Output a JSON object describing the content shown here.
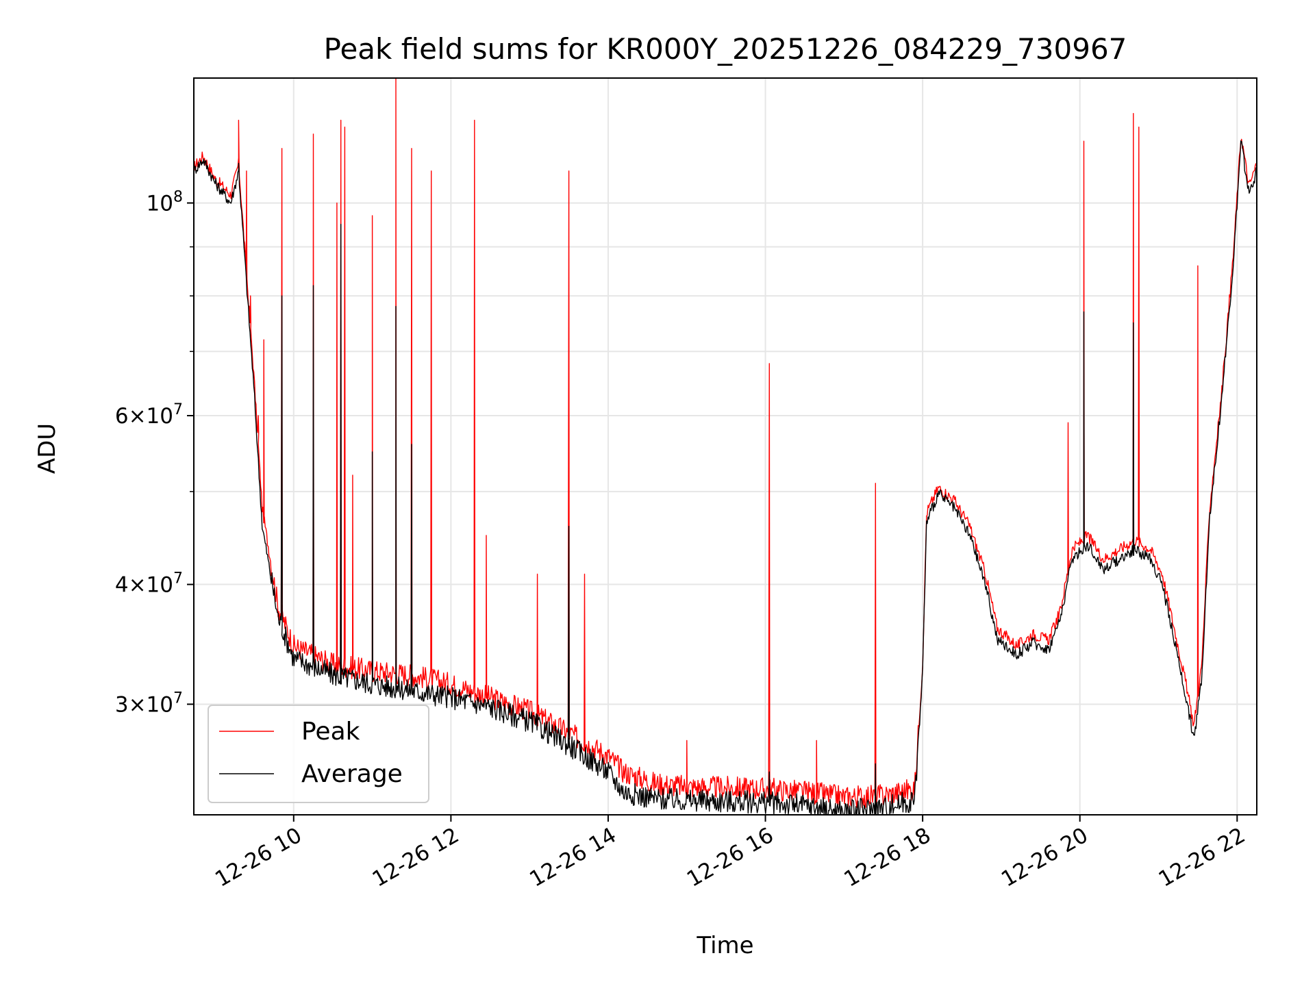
{
  "chart_data": {
    "type": "line",
    "title": "Peak field sums for KR000Y_20251226_084229_730967",
    "xlabel": "Time",
    "ylabel": "ADU",
    "yscale": "log",
    "ylim": [
      23000000,
      135000000
    ],
    "xlim_hours": [
      8.73,
      22.25
    ],
    "grid": true,
    "legend_position": "lower-left",
    "x_ticks": [
      {
        "hour": 10,
        "label": "12-26 10"
      },
      {
        "hour": 12,
        "label": "12-26 12"
      },
      {
        "hour": 14,
        "label": "12-26 14"
      },
      {
        "hour": 16,
        "label": "12-26 16"
      },
      {
        "hour": 18,
        "label": "12-26 18"
      },
      {
        "hour": 20,
        "label": "12-26 20"
      },
      {
        "hour": 22,
        "label": "12-26 22"
      }
    ],
    "y_ticks": [
      {
        "value": 30000000,
        "mantissa": "3",
        "exponent": "7"
      },
      {
        "value": 40000000,
        "mantissa": "4",
        "exponent": "7"
      },
      {
        "value": 60000000,
        "mantissa": "6",
        "exponent": "7"
      },
      {
        "value": 100000000,
        "mantissa": "10",
        "exponent": "8",
        "pure_power": true
      }
    ],
    "y_minor_ticks": [
      50000000,
      70000000,
      80000000,
      90000000
    ],
    "tick_times_sign": "×",
    "series": [
      {
        "name": "Peak",
        "color": "#ff0000",
        "baseline": [
          [
            8.73,
            109000000
          ],
          [
            8.85,
            112000000
          ],
          [
            9.0,
            106000000
          ],
          [
            9.2,
            102000000
          ],
          [
            9.3,
            110000000
          ],
          [
            9.5,
            65000000
          ],
          [
            9.6,
            48000000
          ],
          [
            9.8,
            38000000
          ],
          [
            10.0,
            34500000
          ],
          [
            10.5,
            33000000
          ],
          [
            11.0,
            32500000
          ],
          [
            11.5,
            32200000
          ],
          [
            12.0,
            31500000
          ],
          [
            12.5,
            30500000
          ],
          [
            13.0,
            29500000
          ],
          [
            13.5,
            28000000
          ],
          [
            14.0,
            26500000
          ],
          [
            14.2,
            25500000
          ],
          [
            14.6,
            24800000
          ],
          [
            15.0,
            24600000
          ],
          [
            16.0,
            24500000
          ],
          [
            16.5,
            24300000
          ],
          [
            17.0,
            24000000
          ],
          [
            17.5,
            24100000
          ],
          [
            17.9,
            24500000
          ],
          [
            18.0,
            33000000
          ],
          [
            18.05,
            47500000
          ],
          [
            18.2,
            50500000
          ],
          [
            18.4,
            49000000
          ],
          [
            18.6,
            46000000
          ],
          [
            18.8,
            41000000
          ],
          [
            18.95,
            36000000
          ],
          [
            19.2,
            34500000
          ],
          [
            19.4,
            35500000
          ],
          [
            19.6,
            35000000
          ],
          [
            19.75,
            37500000
          ],
          [
            19.9,
            43500000
          ],
          [
            20.1,
            45000000
          ],
          [
            20.3,
            42500000
          ],
          [
            20.5,
            43500000
          ],
          [
            20.7,
            44500000
          ],
          [
            20.9,
            43500000
          ],
          [
            21.05,
            41000000
          ],
          [
            21.2,
            36000000
          ],
          [
            21.35,
            31500000
          ],
          [
            21.45,
            28500000
          ],
          [
            21.55,
            33000000
          ],
          [
            21.65,
            48000000
          ],
          [
            21.8,
            63000000
          ],
          [
            21.95,
            88000000
          ],
          [
            22.05,
            118000000
          ],
          [
            22.15,
            104000000
          ],
          [
            22.25,
            110000000
          ]
        ],
        "spikes": [
          [
            9.3,
            122000000
          ],
          [
            9.4,
            108000000
          ],
          [
            9.45,
            80000000
          ],
          [
            9.55,
            60000000
          ],
          [
            9.62,
            72000000
          ],
          [
            9.85,
            114000000
          ],
          [
            10.25,
            118000000
          ],
          [
            10.55,
            100000000
          ],
          [
            10.6,
            122000000
          ],
          [
            10.65,
            120000000
          ],
          [
            10.75,
            52000000
          ],
          [
            11.0,
            97000000
          ],
          [
            11.3,
            135000000
          ],
          [
            11.5,
            114000000
          ],
          [
            11.75,
            108000000
          ],
          [
            12.3,
            122000000
          ],
          [
            12.45,
            45000000
          ],
          [
            13.1,
            41000000
          ],
          [
            13.5,
            108000000
          ],
          [
            13.7,
            41000000
          ],
          [
            15.0,
            27500000
          ],
          [
            16.05,
            68000000
          ],
          [
            16.65,
            27500000
          ],
          [
            17.4,
            51000000
          ],
          [
            19.85,
            59000000
          ],
          [
            20.05,
            116000000
          ],
          [
            20.68,
            124000000
          ],
          [
            20.75,
            120000000
          ],
          [
            21.5,
            86000000
          ]
        ]
      },
      {
        "name": "Average",
        "color": "#000000",
        "baseline": [
          [
            8.73,
            108000000
          ],
          [
            8.85,
            111000000
          ],
          [
            9.0,
            105000000
          ],
          [
            9.2,
            100000000
          ],
          [
            9.3,
            108000000
          ],
          [
            9.5,
            63000000
          ],
          [
            9.6,
            46000000
          ],
          [
            9.8,
            37000000
          ],
          [
            10.0,
            33500000
          ],
          [
            10.5,
            32200000
          ],
          [
            11.0,
            31500000
          ],
          [
            11.5,
            31000000
          ],
          [
            12.0,
            30500000
          ],
          [
            12.5,
            29800000
          ],
          [
            13.0,
            28800000
          ],
          [
            13.5,
            27200000
          ],
          [
            14.0,
            25500000
          ],
          [
            14.2,
            24300000
          ],
          [
            14.6,
            23900000
          ],
          [
            15.0,
            23800000
          ],
          [
            16.0,
            23700000
          ],
          [
            16.5,
            23500000
          ],
          [
            17.0,
            23200000
          ],
          [
            17.5,
            23400000
          ],
          [
            17.9,
            23800000
          ],
          [
            18.0,
            32500000
          ],
          [
            18.05,
            46500000
          ],
          [
            18.2,
            49800000
          ],
          [
            18.4,
            48000000
          ],
          [
            18.6,
            45000000
          ],
          [
            18.8,
            40000000
          ],
          [
            18.95,
            35000000
          ],
          [
            19.2,
            33800000
          ],
          [
            19.4,
            34800000
          ],
          [
            19.6,
            34200000
          ],
          [
            19.75,
            36800000
          ],
          [
            19.9,
            42500000
          ],
          [
            20.1,
            44000000
          ],
          [
            20.3,
            41500000
          ],
          [
            20.5,
            42500000
          ],
          [
            20.7,
            43500000
          ],
          [
            20.9,
            42500000
          ],
          [
            21.05,
            40000000
          ],
          [
            21.2,
            35000000
          ],
          [
            21.35,
            30500000
          ],
          [
            21.45,
            27500000
          ],
          [
            21.55,
            32000000
          ],
          [
            21.65,
            47000000
          ],
          [
            21.8,
            62000000
          ],
          [
            21.95,
            86000000
          ],
          [
            22.05,
            116000000
          ],
          [
            22.15,
            102000000
          ],
          [
            22.25,
            108000000
          ]
        ],
        "spikes": [
          [
            9.3,
            110000000
          ],
          [
            9.85,
            80000000
          ],
          [
            10.25,
            82000000
          ],
          [
            10.6,
            95000000
          ],
          [
            11.0,
            55000000
          ],
          [
            11.3,
            78000000
          ],
          [
            11.5,
            56000000
          ],
          [
            13.5,
            46000000
          ],
          [
            16.05,
            25500000
          ],
          [
            17.4,
            26000000
          ],
          [
            20.05,
            77000000
          ],
          [
            20.68,
            75000000
          ]
        ]
      }
    ]
  }
}
